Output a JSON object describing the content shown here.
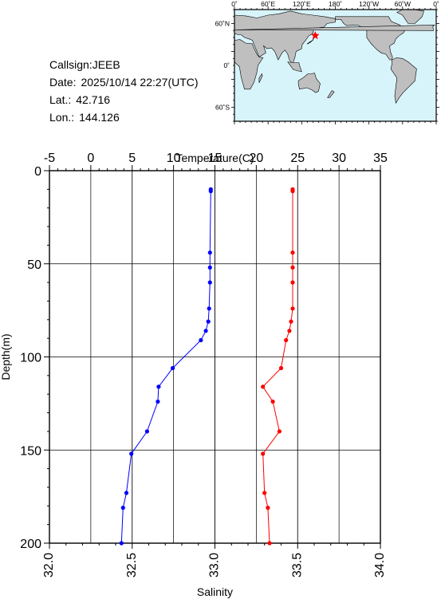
{
  "info": {
    "callsign_label": "Callsign:",
    "callsign": "JEEB",
    "date_label": "Date:",
    "date": "2025/10/14 22:27(UTC)",
    "lat_label": "Lat.:",
    "lat": "42.716",
    "lon_label": "Lon.:",
    "lon": "144.126"
  },
  "map": {
    "top_labels": [
      "0˚",
      "60˚E",
      "120˚E",
      "180˚",
      "120˚W",
      "60˚W",
      "0˚"
    ],
    "left_labels": [
      "60˚N",
      "0˚",
      "60˚S"
    ],
    "ocean_color": "#d8f4fb",
    "land_color": "#bfbfbf",
    "marker_color": "#ff0000",
    "marker_icon": "star",
    "marker_lon": 144.126,
    "marker_lat": 42.716
  },
  "chart_data": {
    "type": "line",
    "title": "",
    "top_axis": {
      "label": "Temperature(C)",
      "range": [
        -5,
        35
      ],
      "ticks": [
        "-5",
        "0",
        "5",
        "10",
        "15",
        "20",
        "25",
        "30",
        "35"
      ]
    },
    "bottom_axis": {
      "label": "Salinity",
      "range": [
        32.0,
        34.0
      ],
      "ticks": [
        "32.0",
        "32.5",
        "33.0",
        "33.5",
        "34.0"
      ]
    },
    "y_axis": {
      "label": "Depth(m)",
      "range": [
        0,
        200
      ],
      "inverted": true,
      "ticks": [
        "0",
        "50",
        "100",
        "150",
        "200"
      ]
    },
    "grid": true,
    "series": [
      {
        "name": "",
        "axis": "top",
        "color": "#0000ff",
        "points": [
          {
            "x": 14.5,
            "y": 10
          },
          {
            "x": 14.5,
            "y": 11
          },
          {
            "x": 14.4,
            "y": 44
          },
          {
            "x": 14.4,
            "y": 52
          },
          {
            "x": 14.4,
            "y": 60
          },
          {
            "x": 14.3,
            "y": 74
          },
          {
            "x": 14.2,
            "y": 81
          },
          {
            "x": 13.9,
            "y": 86
          },
          {
            "x": 13.3,
            "y": 91
          },
          {
            "x": 9.9,
            "y": 106
          },
          {
            "x": 8.2,
            "y": 116
          },
          {
            "x": 8.1,
            "y": 124
          },
          {
            "x": 6.8,
            "y": 140
          },
          {
            "x": 4.9,
            "y": 152
          },
          {
            "x": 4.3,
            "y": 173
          },
          {
            "x": 3.9,
            "y": 181
          },
          {
            "x": 3.7,
            "y": 200
          }
        ]
      },
      {
        "name": "",
        "axis": "bottom",
        "color": "#ff0000",
        "points": [
          {
            "x": 33.47,
            "y": 10
          },
          {
            "x": 33.47,
            "y": 11
          },
          {
            "x": 33.47,
            "y": 44
          },
          {
            "x": 33.47,
            "y": 52
          },
          {
            "x": 33.47,
            "y": 60
          },
          {
            "x": 33.47,
            "y": 74
          },
          {
            "x": 33.46,
            "y": 81
          },
          {
            "x": 33.45,
            "y": 86
          },
          {
            "x": 33.43,
            "y": 91
          },
          {
            "x": 33.4,
            "y": 106
          },
          {
            "x": 33.29,
            "y": 116
          },
          {
            "x": 33.35,
            "y": 124
          },
          {
            "x": 33.39,
            "y": 140
          },
          {
            "x": 33.29,
            "y": 152
          },
          {
            "x": 33.3,
            "y": 173
          },
          {
            "x": 33.32,
            "y": 181
          },
          {
            "x": 33.33,
            "y": 200
          }
        ]
      }
    ]
  }
}
